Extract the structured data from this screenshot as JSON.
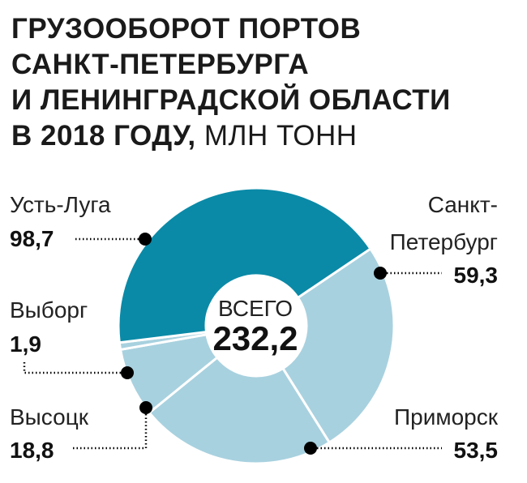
{
  "title": {
    "lines": [
      "Грузооборот портов",
      "Санкт-Петербурга",
      "и Ленинградской области"
    ],
    "last_line_bold": "в 2018 году,",
    "unit": "млн тонн"
  },
  "center": {
    "caption": "ВСЕГО",
    "total": "232,2"
  },
  "colors": {
    "dark": "#0a8aa7",
    "light": "#a8d1df",
    "dot": "#000000"
  },
  "chart_data": {
    "type": "pie",
    "title": "Грузооборот портов Санкт-Петербурга и Ленинградской области в 2018 году, млн тонн",
    "unit": "млн тонн",
    "total": 232.2,
    "slices": [
      {
        "name": "Санкт-Петербург",
        "value": 59.3,
        "value_label": "59,3",
        "label_lines": [
          "Санкт-",
          "Петербург"
        ],
        "color": "#a8d1df"
      },
      {
        "name": "Приморск",
        "value": 53.5,
        "value_label": "53,5",
        "label_lines": [
          "Приморск"
        ],
        "color": "#a8d1df"
      },
      {
        "name": "Высоцк",
        "value": 18.8,
        "value_label": "18,8",
        "label_lines": [
          "Высоцк"
        ],
        "color": "#a8d1df"
      },
      {
        "name": "Выборг",
        "value": 1.9,
        "value_label": "1,9",
        "label_lines": [
          "Выборг"
        ],
        "color": "#a8d1df"
      },
      {
        "name": "Усть-Луга",
        "value": 98.7,
        "value_label": "98,7",
        "label_lines": [
          "Усть-Луга"
        ],
        "color": "#0a8aa7"
      }
    ]
  }
}
